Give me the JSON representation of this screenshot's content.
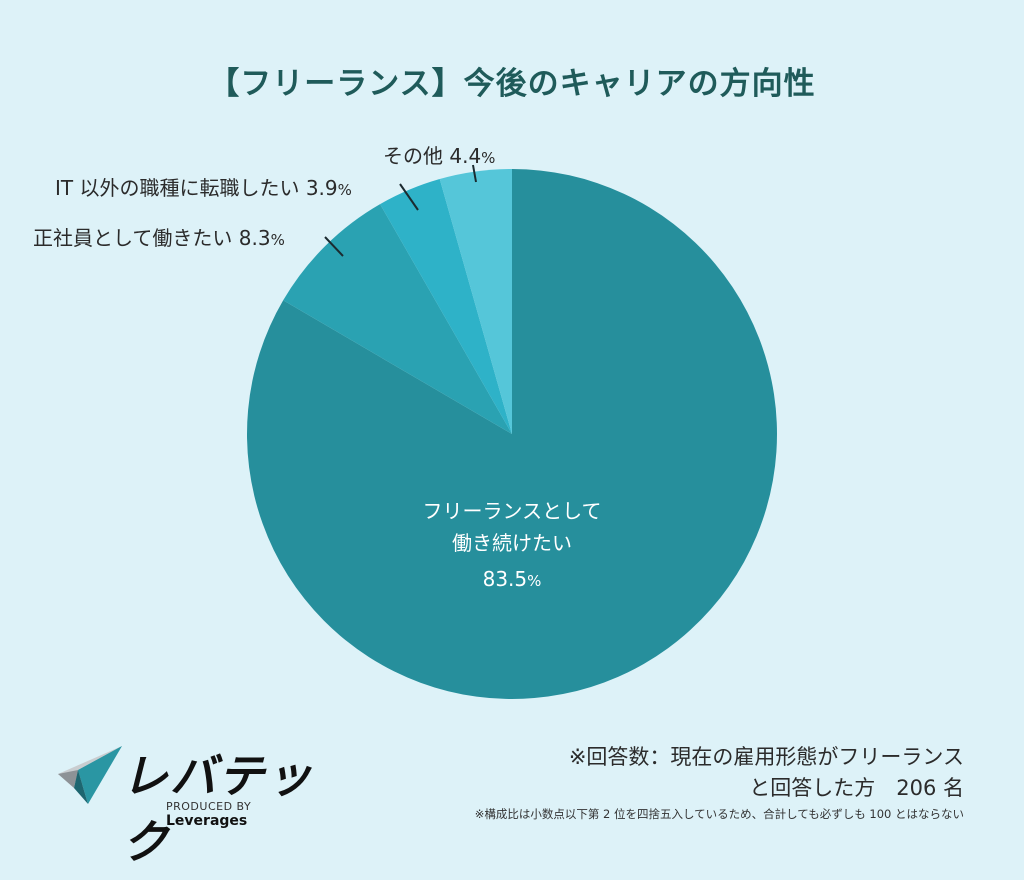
{
  "header": {
    "title": "【フリーランス】今後のキャリアの方向性"
  },
  "chart_data": {
    "type": "pie",
    "title": "【フリーランス】今後のキャリアの方向性",
    "start_angle": "12 o'clock, clockwise",
    "center": [
      512,
      434
    ],
    "radius": 265,
    "slices": [
      {
        "label": "フリーランスとして働き続けたい",
        "value": 83.5,
        "color": "#268F9C"
      },
      {
        "label": "正社員として働きたい",
        "value": 8.3,
        "color": "#2AA2B2"
      },
      {
        "label": "IT 以外の職種に転職したい",
        "value": 3.9,
        "color": "#2EB2C8"
      },
      {
        "label": "その他",
        "value": 4.4,
        "color": "#55C6D9"
      }
    ],
    "unit": "%",
    "respondents": 206
  },
  "labels": {
    "main_line1": "フリーランスとして",
    "main_line2": "働き続けたい",
    "main_value": "83.5",
    "seishain_text": "正社員として働きたい 8.3",
    "it_other_text": "IT 以外の職種に転職したい 3.9",
    "other_text": "その他 4.4",
    "pct": "%"
  },
  "footer": {
    "logo_text": "レバテック",
    "logo_sub_prefix": "PRODUCED BY ",
    "logo_sub_brand": "Leverages",
    "note_line1": "※回答数：現在の雇用形態がフリーランス",
    "note_line2": "と回答した方　206 名",
    "note_small": "※構成比は小数点以下第 2 位を四捨五入しているため、合計しても必ずしも 100 とはならない"
  },
  "colors": {
    "background": "#DDF2F8",
    "title": "#1F5B5A"
  }
}
